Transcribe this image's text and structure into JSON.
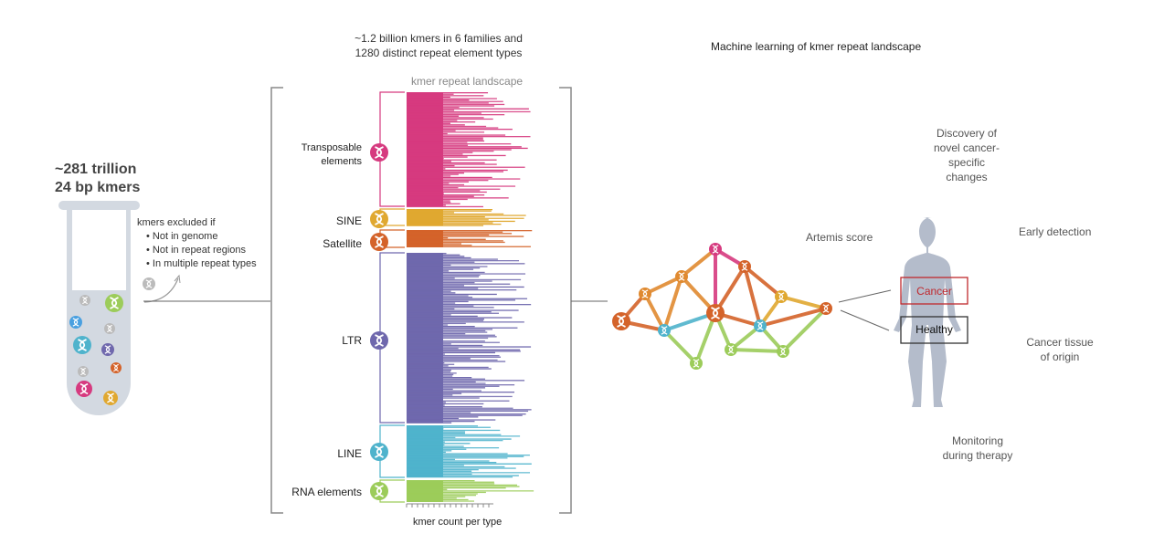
{
  "tube": {
    "title_line1": "~281 trillion",
    "title_line2": "24 bp kmers"
  },
  "exclusion": {
    "heading": "kmers excluded if",
    "items": [
      "Not in genome",
      "Not in repeat regions",
      "In multiple repeat types"
    ]
  },
  "landscape": {
    "header_line1": "~1.2 billion kmers in 6 families and",
    "header_line2": "1280 distinct repeat element types",
    "title": "kmer repeat landscape",
    "x_label": "kmer count per type",
    "families": [
      {
        "name_line1": "Transposable",
        "name_line2": "elements",
        "color": "#d63a7f"
      },
      {
        "name_line1": "SINE",
        "color": "#e0a830"
      },
      {
        "name_line1": "Satellite",
        "color": "#d4632a"
      },
      {
        "name_line1": "LTR",
        "color": "#6f68ad"
      },
      {
        "name_line1": "LINE",
        "color": "#4fb3cc"
      },
      {
        "name_line1": "RNA elements",
        "color": "#9ccc5a"
      }
    ]
  },
  "ml": {
    "title": "Machine learning of kmer repeat landscape",
    "score_label": "Artemis score",
    "cancer_label": "Cancer",
    "healthy_label": "Healthy",
    "cancer_color": "#c0282d"
  },
  "applications": {
    "discovery_line1": "Discovery of",
    "discovery_line2": "novel cancer-",
    "discovery_line3": "specific",
    "discovery_line4": "changes",
    "early": "Early detection",
    "tissue_line1": "Cancer tissue",
    "tissue_line2": "of origin",
    "monitor_line1": "Monitoring",
    "monitor_line2": "during therapy"
  }
}
